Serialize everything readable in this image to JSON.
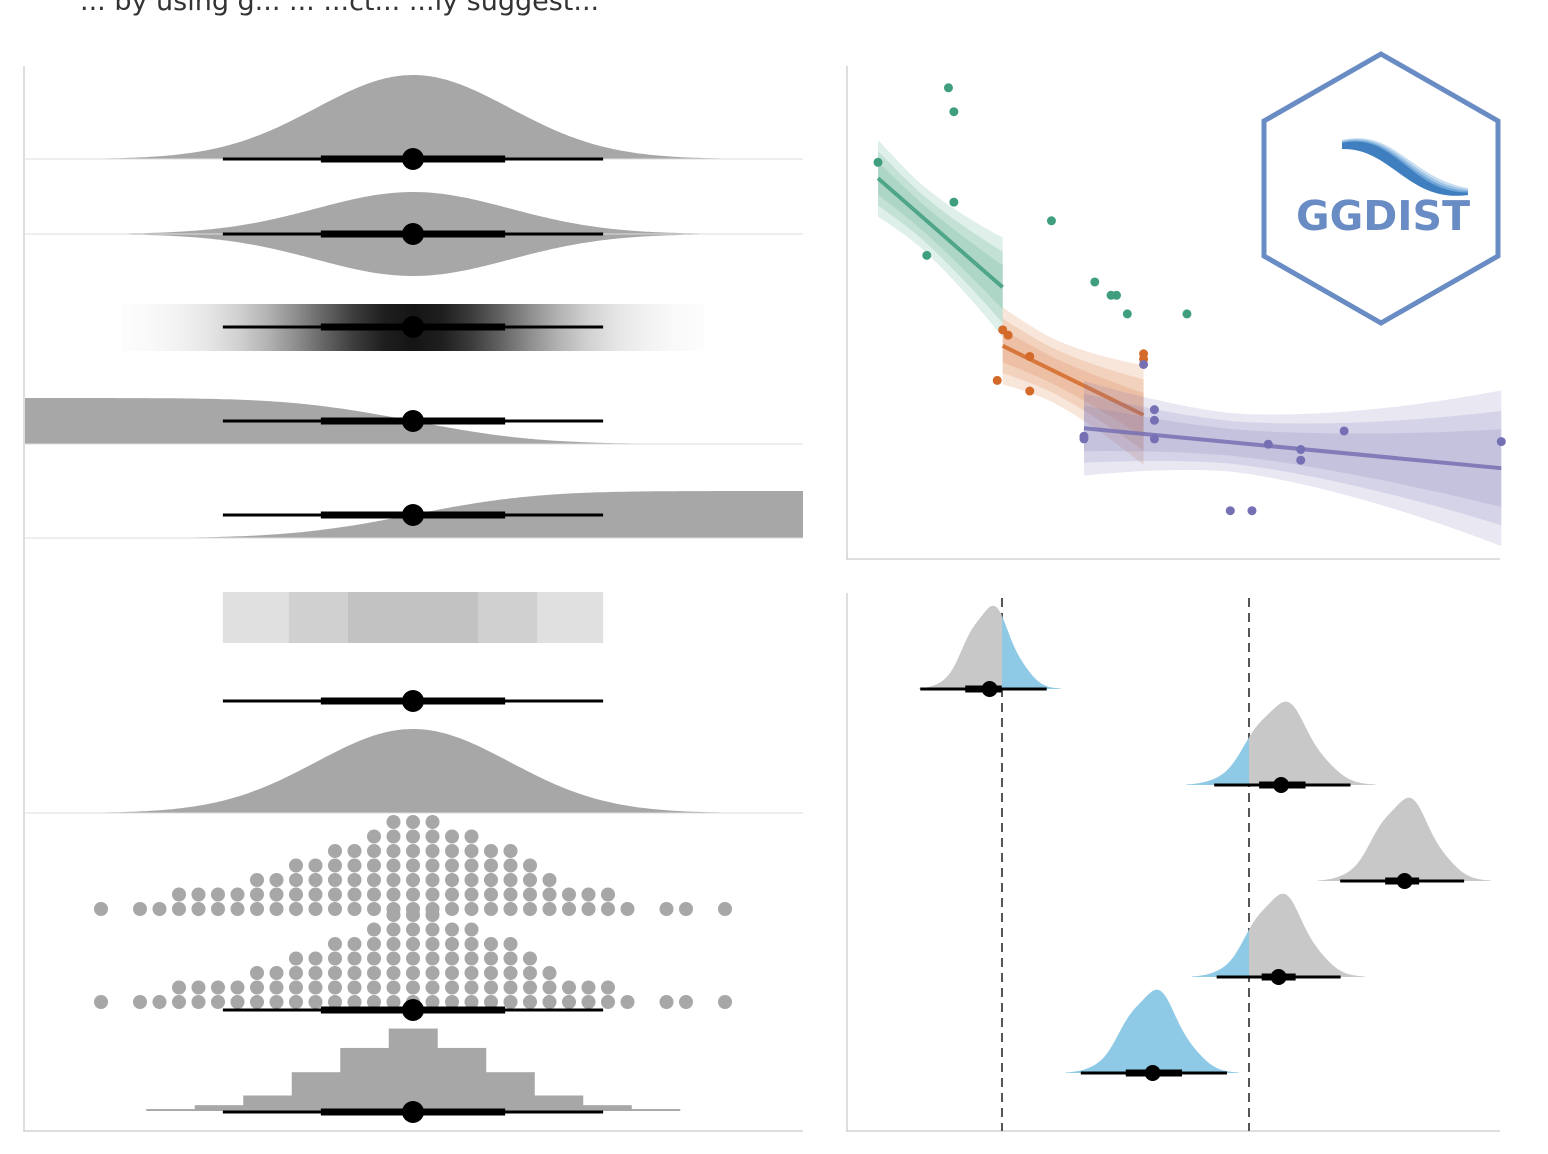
{
  "header": {
    "visible_fragment": "... by using g... ... ...ct... ...ly suggest..."
  },
  "logo": {
    "text": "GGDIST",
    "color": "#6a8cc4"
  },
  "colors": {
    "density_gray": "#a7a7a7",
    "interval_black": "#000000",
    "teal": "#3f9e7e",
    "orange": "#d46a2a",
    "purple": "#7570b3",
    "blue": "#8ecae6",
    "axis_gray": "#d3d3d3"
  },
  "chart_data": [
    {
      "type": "area",
      "panel": "left-stat-slab-variants",
      "distribution": "normal(0, 1)",
      "xlim": [
        -4,
        4
      ],
      "point_interval": {
        "point": 0,
        "thin_interval": [
          -1.96,
          1.96
        ],
        "thick_interval": [
          -0.95,
          0.95
        ]
      },
      "rows": [
        {
          "geom": "halfeye"
        },
        {
          "geom": "eye"
        },
        {
          "geom": "gradientinterval"
        },
        {
          "geom": "ccdfinterval"
        },
        {
          "geom": "cdfinterval"
        }
      ]
    },
    {
      "type": "area",
      "panel": "left-interval-slab",
      "rows": [
        {
          "geom": "interval",
          "levels": [
            0.5,
            0.8,
            0.95
          ]
        },
        {
          "geom": "pointinterval"
        },
        {
          "geom": "slab"
        }
      ]
    },
    {
      "type": "scatter",
      "panel": "left-dots",
      "rows": [
        {
          "geom": "dots",
          "column_heights": [
            1,
            0,
            1,
            1,
            2,
            2,
            2,
            2,
            3,
            3,
            4,
            4,
            5,
            5,
            6,
            7,
            7,
            7,
            6,
            6,
            5,
            5,
            4,
            3,
            2,
            2,
            2,
            1,
            0,
            1,
            1,
            0,
            1
          ]
        },
        {
          "geom": "dotsinterval",
          "column_heights": [
            1,
            0,
            1,
            1,
            2,
            2,
            2,
            2,
            3,
            3,
            4,
            4,
            5,
            5,
            6,
            7,
            7,
            7,
            6,
            6,
            5,
            5,
            4,
            3,
            2,
            2,
            2,
            1,
            0,
            1,
            1,
            0,
            1
          ]
        }
      ]
    },
    {
      "type": "bar",
      "panel": "left-histinterval",
      "bin_heights": [
        0.02,
        0.06,
        0.16,
        0.4,
        0.65,
        0.85,
        0.65,
        0.4,
        0.16,
        0.06,
        0.02
      ]
    },
    {
      "type": "scatter",
      "panel": "top-right-piecewise-regression",
      "series": [
        {
          "name": "",
          "color": "#3f9e7e",
          "segment_x": [
            0,
            2.3
          ],
          "line_y": [
            6.8,
            4.75
          ],
          "points": [
            [
              0,
              7.1
            ],
            [
              1.3,
              8.5
            ],
            [
              1.4,
              8.05
            ],
            [
              1.4,
              6.35
            ],
            [
              0.9,
              5.35
            ],
            [
              3.2,
              6.0
            ],
            [
              4.0,
              4.85
            ],
            [
              4.3,
              4.6
            ],
            [
              4.4,
              4.6
            ],
            [
              4.6,
              4.25
            ],
            [
              5.7,
              4.25
            ]
          ]
        },
        {
          "name": "",
          "color": "#d46a2a",
          "segment_x": [
            2.3,
            4.9
          ],
          "line_y": [
            3.65,
            2.35
          ],
          "points": [
            [
              2.3,
              3.95
            ],
            [
              2.4,
              3.85
            ],
            [
              2.8,
              3.45
            ],
            [
              2.2,
              3.0
            ],
            [
              2.8,
              2.8
            ],
            [
              4.9,
              3.5
            ],
            [
              4.9,
              3.4
            ]
          ]
        },
        {
          "name": "",
          "color": "#7570b3",
          "segment_x": [
            3.8,
            11.5
          ],
          "line_y": [
            2.1,
            1.35
          ],
          "points": [
            [
              4.9,
              3.3
            ],
            [
              5.1,
              2.45
            ],
            [
              5.1,
              2.25
            ],
            [
              3.8,
              1.95
            ],
            [
              3.8,
              1.9
            ],
            [
              5.1,
              1.9
            ],
            [
              7.2,
              1.8
            ],
            [
              7.8,
              1.7
            ],
            [
              7.8,
              1.5
            ],
            [
              8.6,
              2.05
            ],
            [
              11.5,
              1.85
            ],
            [
              6.9,
              0.55
            ],
            [
              6.5,
              0.55
            ]
          ]
        }
      ]
    },
    {
      "type": "area",
      "panel": "bottom-right-halfeye-vs-thresholds",
      "reference_lines": [
        0,
        1
      ],
      "groups": [
        {
          "median": -0.05,
          "interval": [
            -0.25,
            0.1
          ],
          "spread": 0.09
        },
        {
          "median": 1.13,
          "interval": [
            0.94,
            1.33
          ],
          "spread": 0.12
        },
        {
          "median": 1.63,
          "interval": [
            1.45,
            1.79
          ],
          "spread": 0.11
        },
        {
          "median": 1.12,
          "interval": [
            0.95,
            1.29
          ],
          "spread": 0.11
        },
        {
          "median": 0.61,
          "interval": [
            0.4,
            0.83
          ],
          "spread": 0.11
        }
      ]
    }
  ]
}
